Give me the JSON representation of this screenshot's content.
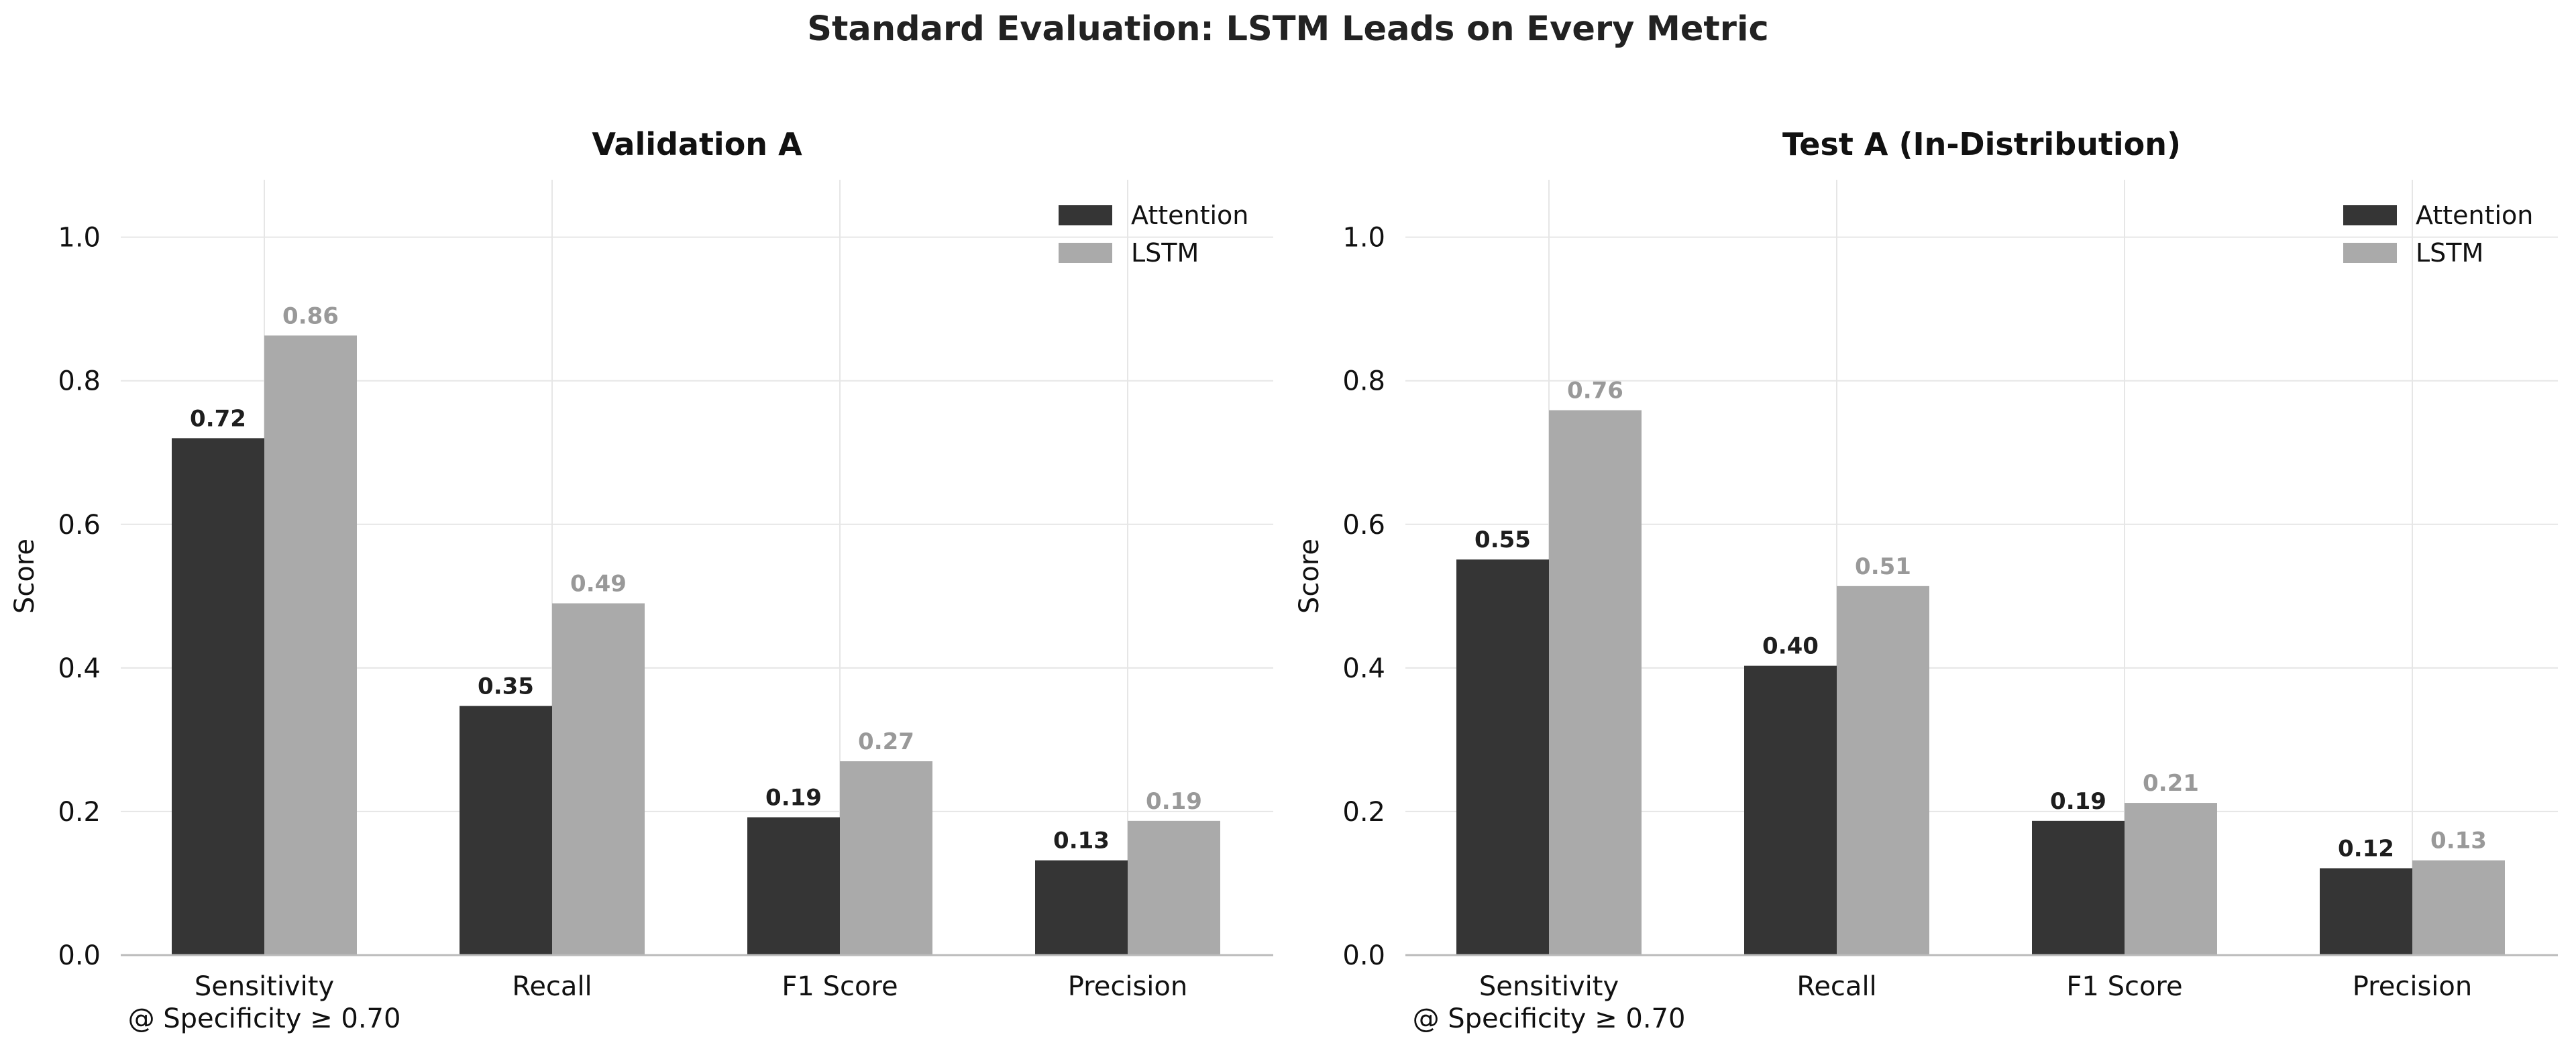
{
  "figure": {
    "title": "Standard Evaluation: LSTM Leads on Every Metric"
  },
  "colors": {
    "attention": "#353535",
    "lstm": "#aaaaaa",
    "grid": "#e6e6e6",
    "axis_line": "#bbbbbb",
    "text": "#111111"
  },
  "chart_data": [
    {
      "type": "bar",
      "title": "Validation A",
      "xlabel": "",
      "ylabel": "Score",
      "ylim": [
        0,
        1.08
      ],
      "yticks": [
        "0.0",
        "0.2",
        "0.4",
        "0.6",
        "0.8",
        "1.0"
      ],
      "grid": true,
      "legend": "top-right",
      "categories": [
        "Sensitivity\n@ Specificity ≥ 0.70",
        "Recall",
        "F1 Score",
        "Precision"
      ],
      "series": [
        {
          "name": "Attention",
          "values": [
            0.72,
            0.347,
            0.192,
            0.132
          ],
          "labels": [
            "0.72",
            "0.35",
            "0.19",
            "0.13"
          ]
        },
        {
          "name": "LSTM",
          "values": [
            0.863,
            0.49,
            0.27,
            0.187
          ],
          "labels": [
            "0.86",
            "0.49",
            "0.27",
            "0.19"
          ]
        }
      ]
    },
    {
      "type": "bar",
      "title": "Test A (In-Distribution)",
      "xlabel": "",
      "ylabel": "Score",
      "ylim": [
        0,
        1.08
      ],
      "yticks": [
        "0.0",
        "0.2",
        "0.4",
        "0.6",
        "0.8",
        "1.0"
      ],
      "grid": true,
      "legend": "top-right",
      "categories": [
        "Sensitivity\n@ Specificity ≥ 0.70",
        "Recall",
        "F1 Score",
        "Precision"
      ],
      "series": [
        {
          "name": "Attention",
          "values": [
            0.551,
            0.403,
            0.187,
            0.121
          ],
          "labels": [
            "0.55",
            "0.40",
            "0.19",
            "0.12"
          ]
        },
        {
          "name": "LSTM",
          "values": [
            0.759,
            0.514,
            0.212,
            0.132
          ],
          "labels": [
            "0.76",
            "0.51",
            "0.21",
            "0.13"
          ]
        }
      ]
    }
  ]
}
